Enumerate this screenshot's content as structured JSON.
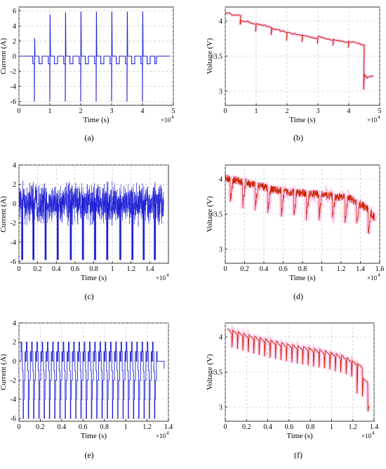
{
  "colors": {
    "current": "#1f1fd6",
    "voltage": "#cc2200",
    "voltage_band": "#ff66cc",
    "grid": "#b8b8b8"
  },
  "chart_data": [
    {
      "id": "a",
      "panel_label": "(a)",
      "type": "line",
      "xlabel": "Time (s)",
      "ylabel": "Current (A)",
      "x_multiplier": "×10",
      "x_exponent": "4",
      "xlim": [
        0,
        5
      ],
      "ylim": [
        -6.5,
        6.5
      ],
      "xticks": [
        0,
        1,
        2,
        3,
        4,
        5
      ],
      "yticks": [
        -6,
        -4,
        -2,
        0,
        2,
        4,
        6
      ],
      "grid": true,
      "series": [
        {
          "kind": "current_pulses",
          "pulse_starts": [
            0.45,
            0.95,
            1.45,
            1.95,
            2.45,
            2.95,
            3.45,
            3.95,
            4.4
          ],
          "peak_charge": [
            2.4,
            5.5,
            5.8,
            5.9,
            5.9,
            5.9,
            5.9,
            5.9,
            0.0
          ],
          "peak_discharge": [
            -6.0,
            -6.0,
            -6.0,
            -6.0,
            -6.0,
            -6.0,
            -6.0,
            -6.0,
            -1.0
          ],
          "step_level": -1.0,
          "baseline": 0
        }
      ]
    },
    {
      "id": "b",
      "panel_label": "(b)",
      "type": "line",
      "xlabel": "Time (s)",
      "ylabel": "Voltage (V)",
      "x_multiplier": "×10",
      "x_exponent": "4",
      "xlim": [
        0,
        5
      ],
      "ylim": [
        2.8,
        4.2
      ],
      "xticks": [
        0,
        1,
        2,
        3,
        4,
        5
      ],
      "yticks": [
        3,
        3.5,
        4
      ],
      "grid": true,
      "series": [
        {
          "kind": "voltage_steps",
          "x_start": 0.0,
          "x_end": 4.6,
          "rest_levels": [
            4.08,
            3.97,
            3.92,
            3.85,
            3.8,
            3.76,
            3.74,
            3.7,
            3.67,
            3.2
          ],
          "dip_levels": [
            3.95,
            3.85,
            3.8,
            3.72,
            3.7,
            3.68,
            3.65,
            3.62,
            3.02
          ]
        }
      ]
    },
    {
      "id": "c",
      "panel_label": "(c)",
      "type": "line",
      "xlabel": "Time (s)",
      "ylabel": "Current (A)",
      "x_multiplier": "×10",
      "x_exponent": "4",
      "xlim": [
        0,
        1.6
      ],
      "ylim": [
        -6.2,
        4
      ],
      "xticks": [
        0,
        0.2,
        0.4,
        0.6,
        0.8,
        1,
        1.2,
        1.4
      ],
      "yticks": [
        -6,
        -4,
        -2,
        0,
        2,
        4
      ],
      "grid": true,
      "series": [
        {
          "kind": "current_noise",
          "x_end": 1.55,
          "amplitude": 2.5,
          "spike_positions": [
            0.03,
            0.15,
            0.28,
            0.41,
            0.55,
            0.68,
            0.81,
            0.94,
            1.08,
            1.21,
            1.33,
            1.45
          ],
          "spike_level": -5.8
        }
      ]
    },
    {
      "id": "d",
      "panel_label": "(d)",
      "type": "line",
      "xlabel": "Time (s)",
      "ylabel": "Voltage (V)",
      "x_multiplier": "×10",
      "x_exponent": "4",
      "xlim": [
        0,
        1.6
      ],
      "ylim": [
        2.8,
        4.2
      ],
      "xticks": [
        0,
        0.2,
        0.4,
        0.6,
        0.8,
        1,
        1.2,
        1.4,
        1.6
      ],
      "yticks": [
        3,
        3.5,
        4
      ],
      "grid": true,
      "series": [
        {
          "kind": "voltage_noise",
          "x_end": 1.55,
          "trend": [
            [
              0,
              4.02
            ],
            [
              0.2,
              3.95
            ],
            [
              0.6,
              3.82
            ],
            [
              1.0,
              3.78
            ],
            [
              1.3,
              3.72
            ],
            [
              1.45,
              3.6
            ],
            [
              1.55,
              3.45
            ]
          ],
          "dip_positions": [
            0.05,
            0.18,
            0.31,
            0.44,
            0.58,
            0.71,
            0.84,
            0.97,
            1.11,
            1.24,
            1.36,
            1.48
          ],
          "dip_depth": 0.35
        }
      ]
    },
    {
      "id": "e",
      "panel_label": "(e)",
      "type": "line",
      "xlabel": "Time (s)",
      "ylabel": "Current (A)",
      "x_multiplier": "×10",
      "x_exponent": "4",
      "xlim": [
        0,
        1.4
      ],
      "ylim": [
        -6.3,
        4
      ],
      "xticks": [
        0,
        0.2,
        0.4,
        0.6,
        0.8,
        1,
        1.2,
        1.4
      ],
      "yticks": [
        -6,
        -4,
        -2,
        0,
        2,
        4
      ],
      "grid": true,
      "series": [
        {
          "kind": "current_square",
          "x_start": 0.02,
          "x_end": 1.3,
          "cycles": 26,
          "levels": [
            2,
            1,
            0.8,
            -1,
            -2,
            -4,
            -6
          ]
        }
      ]
    },
    {
      "id": "f",
      "panel_label": "(f)",
      "type": "line",
      "xlabel": "Time (s)",
      "ylabel": "Voltage (V)",
      "x_multiplier": "×10",
      "x_exponent": "4",
      "xlim": [
        0,
        1.4
      ],
      "ylim": [
        2.8,
        4.2
      ],
      "xticks": [
        0,
        0.2,
        0.4,
        0.6,
        0.8,
        1,
        1.2,
        1.4
      ],
      "yticks": [
        3,
        3.5,
        4
      ],
      "grid": true,
      "series": [
        {
          "kind": "voltage_sawtooth",
          "x_start": 0.02,
          "x_end": 1.35,
          "cycles": 26,
          "trend": [
            [
              0.02,
              4.1
            ],
            [
              0.3,
              3.98
            ],
            [
              0.6,
              3.88
            ],
            [
              0.9,
              3.8
            ],
            [
              1.1,
              3.72
            ],
            [
              1.25,
              3.6
            ],
            [
              1.32,
              3.3
            ],
            [
              1.35,
              3.0
            ]
          ],
          "dip_depth": 0.25
        }
      ]
    }
  ]
}
